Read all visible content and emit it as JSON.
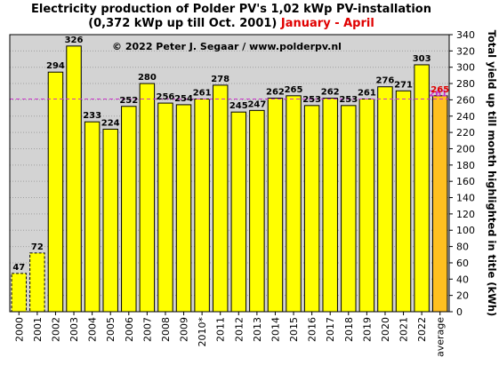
{
  "header": {
    "title_line1": "Electricity production  of Polder  PV's  1,02 kWp PV-installation",
    "title_line2": "(0,372 kWp up till Oct. 2001)",
    "title_period": "January - April"
  },
  "chart_data": {
    "type": "bar",
    "copyright": "© 2022 Peter J. Segaar / www.polderpv.nl",
    "ylabel": "Total yield up till month highlighted in title (kWh)",
    "ylim": [
      0,
      340
    ],
    "ytick_step": 20,
    "grid": true,
    "categories": [
      "2000",
      "2001",
      "2002",
      "2003",
      "2004",
      "2005",
      "2006",
      "2007",
      "2008",
      "2009",
      "2010*",
      "2011",
      "2012",
      "2013",
      "2014",
      "2015",
      "2016",
      "2017",
      "2018",
      "2019",
      "2020",
      "2021",
      "2022",
      "average"
    ],
    "values": [
      47,
      72,
      294,
      326,
      233,
      224,
      252,
      280,
      256,
      254,
      261,
      278,
      245,
      247,
      262,
      265,
      253,
      262,
      253,
      261,
      276,
      271,
      303,
      265
    ],
    "average_line": {
      "value": 261,
      "label": "261",
      "color": "#cc33cc"
    },
    "colors": {
      "bar": "#ffff00",
      "average_bar": "#ffc020",
      "plot_bg": "#d3d3d3",
      "average_label": "#e00000"
    }
  }
}
